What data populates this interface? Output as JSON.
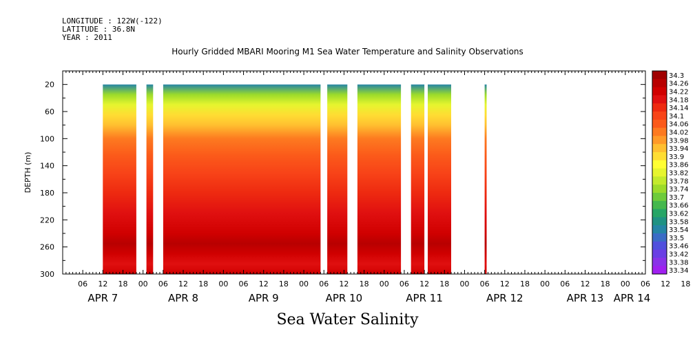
{
  "meta": {
    "longitude": "LONGITUDE : 122W(-122)",
    "latitude": "LATITUDE : 36.8N",
    "year": "YEAR : 2011"
  },
  "chart_data": {
    "type": "heatmap",
    "title": "Hourly Gridded MBARI Mooring M1 Sea Water Temperature and Salinity Observations",
    "subtitle": "Sea Water Salinity",
    "ylabel": "DEPTH (m)",
    "xlabel": "",
    "y_inverted": true,
    "ylim": [
      0,
      300
    ],
    "yticks": [
      20,
      60,
      100,
      140,
      180,
      220,
      260,
      300
    ],
    "xlim_hours_labels": [
      "APR 7 00",
      "APR 14 06"
    ],
    "x_hour_ticks": [
      "06",
      "12",
      "18",
      "00",
      "06",
      "12",
      "18",
      "00",
      "06",
      "12",
      "18",
      "00",
      "06",
      "12",
      "18",
      "00",
      "06",
      "12",
      "18",
      "00",
      "06",
      "12",
      "18",
      "00",
      "06",
      "12",
      "18",
      "00",
      "06",
      "12",
      "18",
      "00",
      "06"
    ],
    "date_labels": [
      "APR  7",
      "APR  8",
      "APR  9",
      "APR 10",
      "APR 11",
      "APR 12",
      "APR 13",
      "APR 14"
    ],
    "data_segments_hours_since_apr7": [
      [
        12,
        22
      ],
      [
        25,
        27
      ],
      [
        30,
        77
      ],
      [
        79,
        85
      ],
      [
        88,
        101
      ],
      [
        104,
        108
      ],
      [
        109,
        116
      ],
      [
        126,
        126.6
      ]
    ],
    "colorbar_levels": [
      "34.3",
      "34.26",
      "34.22",
      "34.18",
      "34.14",
      "34.1",
      "34.06",
      "34.02",
      "33.98",
      "33.94",
      "33.9",
      "33.86",
      "33.82",
      "33.78",
      "33.74",
      "33.7",
      "33.66",
      "33.62",
      "33.58",
      "33.54",
      "33.5",
      "33.46",
      "33.42",
      "33.38",
      "33.34"
    ],
    "colorbar_colors": [
      "#a00000",
      "#b80000",
      "#d00000",
      "#e01010",
      "#ee2a10",
      "#f84418",
      "#fb5a1a",
      "#fd7a20",
      "#ff9a28",
      "#ffbf30",
      "#ffdd33",
      "#ffff33",
      "#e6f52e",
      "#c3ea2c",
      "#9cdb2a",
      "#6ecb3a",
      "#44b84d",
      "#26a566",
      "#1f9283",
      "#2585a6",
      "#3a6cc6",
      "#5050dd",
      "#6a3fe4",
      "#8a32e8",
      "#a020f0"
    ],
    "depth_profile": [
      {
        "depth": 20,
        "salinity": 33.56
      },
      {
        "depth": 35,
        "salinity": 33.74
      },
      {
        "depth": 50,
        "salinity": 33.84
      },
      {
        "depth": 65,
        "salinity": 33.9
      },
      {
        "depth": 80,
        "salinity": 33.96
      },
      {
        "depth": 100,
        "salinity": 34.02
      },
      {
        "depth": 125,
        "salinity": 34.07
      },
      {
        "depth": 150,
        "salinity": 34.12
      },
      {
        "depth": 180,
        "salinity": 34.14
      },
      {
        "depth": 210,
        "salinity": 34.18
      },
      {
        "depth": 240,
        "salinity": 34.23
      },
      {
        "depth": 255,
        "salinity": 34.29
      },
      {
        "depth": 270,
        "salinity": 34.24
      },
      {
        "depth": 285,
        "salinity": 34.21
      },
      {
        "depth": 300,
        "salinity": 34.22
      }
    ]
  }
}
